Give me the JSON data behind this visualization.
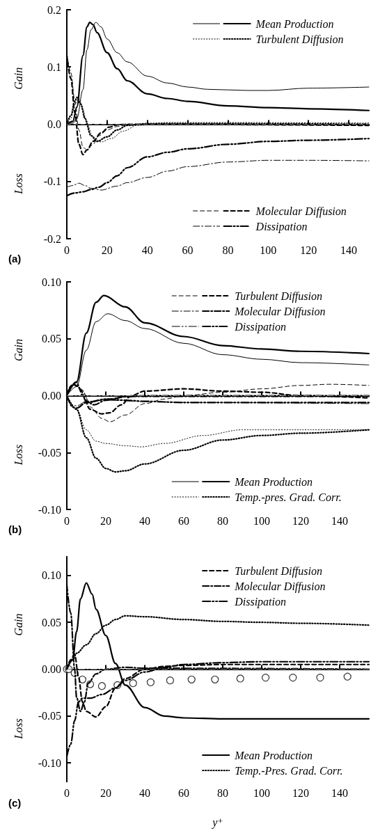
{
  "chart_data": [
    {
      "type": "line",
      "xlim": [
        0,
        150
      ],
      "xticks": [
        0,
        20,
        40,
        60,
        80,
        100,
        120,
        140
      ],
      "ylim": [
        -0.2,
        0.2
      ],
      "yticks": [
        -0.2,
        -0.1,
        {
          "value": 0,
          "label": "0.0"
        },
        0.1,
        0.2
      ],
      "legend": "right",
      "marker": "none",
      "annotations": [
        "Gain",
        "Loss",
        "(a)"
      ],
      "ref_lines": [
        {
          "axis": "y",
          "value": 0,
          "color": "#808080",
          "line_style": "dashed"
        }
      ],
      "series": [
        {
          "color": "#000000",
          "line_style": "solid",
          "x": [
            0,
            3,
            5,
            8,
            10,
            12,
            14.4,
            17,
            20,
            25,
            30,
            40,
            50,
            60,
            70,
            80,
            90,
            100,
            120,
            150
          ],
          "values": [
            0,
            0.002,
            0.01,
            0.06,
            0.13,
            0.165,
            0.178,
            0.17,
            0.149,
            0.125,
            0.109,
            0.084,
            0.072,
            0.065,
            0.061,
            0.06,
            0.059,
            0.059,
            0.063,
            0.065
          ]
        },
        {
          "name": "Mean Production",
          "color": "#000000",
          "line_style": "solid",
          "x": [
            0,
            3,
            5,
            8,
            10,
            11.4,
            13,
            15,
            20,
            25,
            30,
            40,
            50,
            60,
            80,
            100,
            120,
            150
          ],
          "values": [
            0,
            0.005,
            0.03,
            0.12,
            0.17,
            0.178,
            0.174,
            0.16,
            0.125,
            0.097,
            0.076,
            0.053,
            0.045,
            0.04,
            0.032,
            0.029,
            0.027,
            0.024
          ]
        },
        {
          "color": "#000000",
          "line_style": "dotted",
          "x": [
            0,
            2,
            4,
            6,
            8,
            10,
            13,
            17,
            22,
            28,
            35,
            50,
            80,
            150
          ],
          "values": [
            0,
            0.01,
            0.035,
            0.045,
            0.025,
            0,
            -0.022,
            -0.031,
            -0.025,
            -0.012,
            -0.002,
            0.003,
            0.003,
            0.002
          ]
        },
        {
          "name": "Turbulent Diffusion",
          "color": "#000000",
          "line_style": "dotted",
          "x": [
            0,
            2,
            4,
            5,
            7,
            9,
            12,
            15,
            20,
            25,
            30,
            40,
            80,
            150
          ],
          "values": [
            0,
            0.015,
            0.04,
            0.047,
            0.035,
            0.01,
            -0.02,
            -0.03,
            -0.022,
            -0.01,
            -0.002,
            0.001,
            0.001,
            0
          ]
        },
        {
          "color": "#000000",
          "line_style": "dashed",
          "x": [
            0,
            2,
            4,
            6,
            8,
            10,
            13,
            16,
            20,
            25,
            30,
            40,
            150
          ],
          "values": [
            0.125,
            0.09,
            0.04,
            -0.01,
            -0.04,
            -0.045,
            -0.035,
            -0.02,
            -0.01,
            -0.004,
            -0.001,
            0,
            0
          ]
        },
        {
          "name": "Molecular Diffusion",
          "color": "#000000",
          "line_style": "dashed",
          "x": [
            0,
            2,
            4,
            6,
            8,
            10,
            13,
            17,
            21,
            25,
            30,
            150
          ],
          "values": [
            0.12,
            0.08,
            0.02,
            -0.035,
            -0.053,
            -0.045,
            -0.03,
            -0.015,
            -0.005,
            -0.001,
            0,
            -0.002
          ]
        },
        {
          "color": "#000000",
          "line_style": "dashdot",
          "x": [
            0,
            3,
            6,
            9,
            12,
            17,
            25,
            30,
            40,
            50,
            60,
            80,
            100,
            120,
            150
          ],
          "values": [
            -0.11,
            -0.107,
            -0.103,
            -0.107,
            -0.112,
            -0.115,
            -0.108,
            -0.102,
            -0.093,
            -0.082,
            -0.074,
            -0.066,
            -0.063,
            -0.063,
            -0.064
          ]
        },
        {
          "name": "Dissipation",
          "color": "#000000",
          "line_style": "dashdotdot",
          "x": [
            0,
            4,
            8,
            12,
            16,
            20,
            25,
            30,
            40,
            50,
            60,
            80,
            100,
            120,
            150
          ],
          "values": [
            -0.125,
            -0.12,
            -0.118,
            -0.114,
            -0.11,
            -0.102,
            -0.09,
            -0.076,
            -0.057,
            -0.049,
            -0.043,
            -0.035,
            -0.03,
            -0.028,
            -0.025
          ]
        }
      ]
    },
    {
      "type": "line",
      "xlim": [
        0,
        155
      ],
      "xticks": [
        0,
        20,
        40,
        60,
        80,
        100,
        120,
        140
      ],
      "ylim": [
        -0.1,
        0.1
      ],
      "yticks": [
        {
          "value": -0.1,
          "label": "-0.10"
        },
        -0.05,
        {
          "value": 0,
          "label": "0.00"
        },
        0.05,
        {
          "value": 0.1,
          "label": "0.10"
        }
      ],
      "legend": "right",
      "marker": "none",
      "annotations": [
        "Gain",
        "Loss",
        "(b)"
      ],
      "ref_lines": [
        {
          "axis": "y",
          "value": 0,
          "color": "#808080",
          "line_style": "dashdot"
        }
      ],
      "series": [
        {
          "color": "#000000",
          "line_style": "dashed",
          "x": [
            0,
            4,
            8,
            12,
            18,
            22,
            30,
            40,
            50,
            60,
            80,
            100,
            120,
            135,
            155
          ],
          "values": [
            0,
            0.01,
            0.005,
            -0.01,
            -0.02,
            -0.023,
            -0.017,
            -0.007,
            -0.003,
            0,
            0.003,
            0.006,
            0.009,
            0.01,
            0.009
          ]
        },
        {
          "name": "Turbulent Diffusion",
          "color": "#000000",
          "line_style": "dashed",
          "x": [
            0,
            3,
            6,
            8,
            12,
            18,
            22,
            28,
            33,
            40,
            60,
            80,
            100,
            120,
            155
          ],
          "values": [
            0,
            0.01,
            0.008,
            0,
            -0.012,
            -0.016,
            -0.015,
            -0.008,
            0,
            0.004,
            0.006,
            0.004,
            0.003,
            0,
            -0.002
          ]
        },
        {
          "color": "#000000",
          "line_style": "dashdot",
          "x": [
            0,
            2,
            5,
            7,
            12,
            20,
            30,
            50,
            155
          ],
          "values": [
            0,
            0.008,
            0.012,
            0.006,
            -0.006,
            -0.003,
            -0.001,
            -0.001,
            -0.001
          ]
        },
        {
          "name": "Molecular Diffusion",
          "color": "#000000",
          "line_style": "dashdot",
          "x": [
            0,
            2,
            5,
            7,
            10,
            14,
            20,
            30,
            40,
            155
          ],
          "values": [
            0,
            0.008,
            0.012,
            0.005,
            -0.005,
            -0.008,
            -0.004,
            -0.001,
            0,
            0
          ]
        },
        {
          "color": "#000000",
          "line_style": "dashdotdot",
          "x": [
            0,
            3,
            5,
            10,
            20,
            40,
            60,
            155
          ],
          "values": [
            0,
            -0.008,
            -0.009,
            -0.005,
            -0.004,
            -0.005,
            -0.006,
            -0.007
          ]
        },
        {
          "name": "Dissipation",
          "color": "#000000",
          "line_style": "dashdotdot",
          "x": [
            0,
            3,
            5,
            10,
            20,
            30,
            40,
            60,
            155
          ],
          "values": [
            0,
            -0.01,
            -0.011,
            -0.006,
            -0.003,
            -0.004,
            -0.005,
            -0.006,
            -0.006
          ]
        },
        {
          "color": "#000000",
          "line_style": "solid",
          "x": [
            0,
            5,
            10,
            15,
            21,
            30,
            40,
            60,
            80,
            100,
            120,
            155
          ],
          "values": [
            0,
            0.008,
            0.04,
            0.065,
            0.072,
            0.066,
            0.059,
            0.046,
            0.036,
            0.032,
            0.029,
            0.027
          ]
        },
        {
          "name": "Mean Production",
          "color": "#000000",
          "line_style": "solid",
          "x": [
            0,
            5,
            10,
            15,
            19,
            30,
            40,
            60,
            80,
            100,
            120,
            155
          ],
          "values": [
            0,
            0.012,
            0.055,
            0.082,
            0.088,
            0.078,
            0.064,
            0.052,
            0.044,
            0.041,
            0.039,
            0.037
          ]
        },
        {
          "color": "#000000",
          "line_style": "dotted",
          "x": [
            0,
            5,
            10,
            15,
            20,
            30,
            38,
            50,
            70,
            90,
            110,
            130,
            155
          ],
          "values": [
            0,
            -0.012,
            -0.03,
            -0.04,
            -0.042,
            -0.044,
            -0.045,
            -0.042,
            -0.035,
            -0.03,
            -0.03,
            -0.03,
            -0.03
          ]
        },
        {
          "name": "Temp.-pres. Grad. Corr.",
          "color": "#000000",
          "line_style": "dotted",
          "x": [
            0,
            5,
            10,
            15,
            20,
            25,
            30,
            40,
            60,
            80,
            100,
            120,
            155
          ],
          "values": [
            0,
            -0.012,
            -0.037,
            -0.055,
            -0.064,
            -0.067,
            -0.066,
            -0.06,
            -0.048,
            -0.039,
            -0.035,
            -0.033,
            -0.03
          ]
        }
      ]
    },
    {
      "type": "line",
      "xlim": [
        0,
        155
      ],
      "xticks": [
        0,
        20,
        40,
        60,
        80,
        100,
        120,
        140
      ],
      "ylim": [
        -0.12,
        0.12
      ],
      "yticks": [
        {
          "value": -0.1,
          "label": "-0.10"
        },
        -0.05,
        {
          "value": 0,
          "label": "0.00"
        },
        0.05,
        {
          "value": 0.1,
          "label": "0.10"
        }
      ],
      "legend": "right",
      "marker": "none",
      "xlabel": "y⁺",
      "annotations": [
        "Gain",
        "Loss",
        "(c)"
      ],
      "ref_lines": [
        {
          "axis": "y",
          "value": 0,
          "color": "#808080",
          "line_style": "dashdot"
        }
      ],
      "series": [
        {
          "name": "Turbulent Diffusion",
          "color": "#000000",
          "line_style": "dashed",
          "x": [
            0,
            2,
            4,
            6,
            8,
            10,
            15,
            20,
            25,
            30,
            40,
            50,
            60,
            80,
            155
          ],
          "values": [
            0,
            0.01,
            0.016,
            -0.008,
            -0.035,
            -0.045,
            -0.051,
            -0.04,
            -0.02,
            -0.01,
            0,
            0.003,
            0.004,
            0.005,
            0.005
          ]
        },
        {
          "name": "Molecular Diffusion",
          "color": "#000000",
          "line_style": "dashdot",
          "x": [
            0,
            2,
            4,
            5,
            7,
            9,
            11,
            15,
            20,
            30,
            40,
            155
          ],
          "values": [
            0.09,
            0.06,
            0,
            -0.03,
            -0.045,
            -0.035,
            -0.015,
            -0.005,
            0,
            0.002,
            0.001,
            0
          ]
        },
        {
          "name": "Dissipation",
          "color": "#000000",
          "line_style": "dashdotdot",
          "x": [
            0,
            2,
            4,
            6,
            8,
            12,
            18,
            25,
            30,
            40,
            50,
            60,
            80,
            100,
            155
          ],
          "values": [
            -0.093,
            -0.08,
            -0.055,
            -0.035,
            -0.031,
            -0.031,
            -0.027,
            -0.02,
            -0.012,
            -0.003,
            0.002,
            0.005,
            0.007,
            0.008,
            0.008
          ]
        },
        {
          "name": "Mean Production",
          "color": "#000000",
          "line_style": "solid",
          "x": [
            0,
            3,
            5,
            7,
            10,
            13,
            15,
            20,
            25,
            30,
            40,
            50,
            60,
            80,
            120,
            155
          ],
          "values": [
            0,
            0.01,
            0.04,
            0.075,
            0.092,
            0.08,
            0.064,
            0.036,
            0.006,
            -0.017,
            -0.041,
            -0.05,
            -0.052,
            -0.053,
            -0.053,
            -0.053
          ]
        },
        {
          "name": "Temp.-Pres. Grad. Corr.",
          "color": "#000000",
          "line_style": "dotted",
          "x": [
            0,
            3,
            5,
            10,
            15,
            20,
            25,
            30,
            40,
            60,
            80,
            100,
            120,
            155
          ],
          "values": [
            0,
            0.01,
            0.017,
            0.026,
            0.038,
            0.047,
            0.053,
            0.057,
            0.056,
            0.053,
            0.051,
            0.05,
            0.049,
            0.047
          ]
        },
        {
          "type": "scatter",
          "marker": "circle",
          "color": "#000000",
          "x": [
            0,
            1,
            4,
            8,
            12,
            18,
            26,
            34,
            43,
            53,
            64,
            76,
            89,
            102,
            116,
            130,
            144
          ],
          "values": [
            0,
            0,
            -0.004,
            -0.011,
            -0.016,
            -0.018,
            -0.017,
            -0.015,
            -0.014,
            -0.012,
            -0.011,
            -0.011,
            -0.01,
            -0.009,
            -0.009,
            -0.009,
            -0.008
          ]
        }
      ]
    }
  ]
}
